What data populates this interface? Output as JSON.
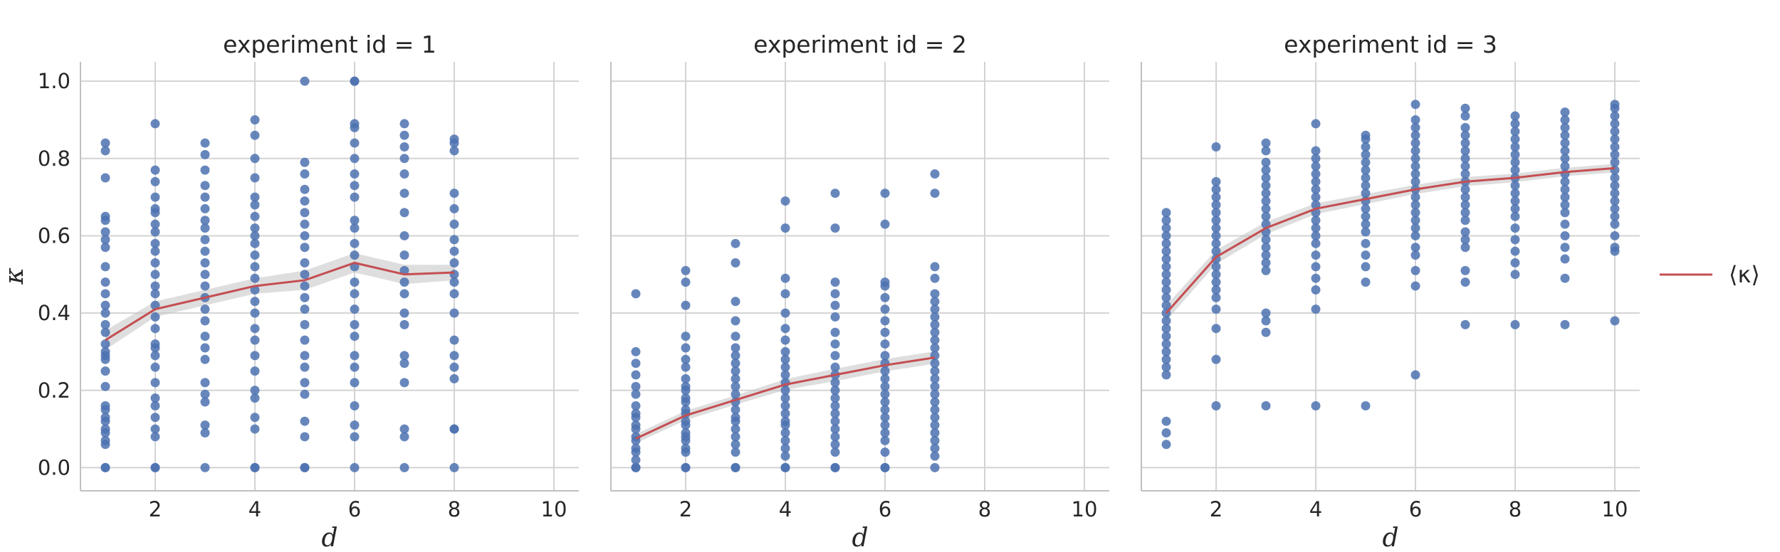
{
  "chart_data": {
    "type": "scatter",
    "ylabel": "κ",
    "xlabel": "d",
    "xlim": [
      0.5,
      10.5
    ],
    "ylim": [
      -0.06,
      1.05
    ],
    "xticks": [
      2,
      4,
      6,
      8,
      10
    ],
    "yticks": [
      0.0,
      0.2,
      0.4,
      0.6,
      0.8,
      1.0
    ],
    "ytick_labels": [
      "0.0",
      "0.2",
      "0.4",
      "0.6",
      "0.8",
      "1.0"
    ],
    "grid": true,
    "legend_position": "right",
    "legend": [
      {
        "label": "⟨κ⟩",
        "color": "#c44e52"
      }
    ],
    "colors": {
      "points": "#4c72b0",
      "mean_line": "#c44e52",
      "ci_band": "#c8c8c8",
      "grid": "#d3d3d3",
      "spine": "#c0c0c0"
    },
    "panels": [
      {
        "title": "experiment id = 1",
        "mean_line": {
          "x": [
            1,
            2,
            3,
            4,
            5,
            6,
            7,
            8
          ],
          "y": [
            0.33,
            0.41,
            0.44,
            0.47,
            0.485,
            0.53,
            0.5,
            0.505
          ],
          "ci_half_width": [
            0.025,
            0.02,
            0.02,
            0.02,
            0.025,
            0.025,
            0.025,
            0.02
          ]
        },
        "points": [
          {
            "x": 1,
            "y": [
              0.0,
              0.0,
              0.06,
              0.07,
              0.09,
              0.1,
              0.12,
              0.13,
              0.15,
              0.16,
              0.21,
              0.25,
              0.28,
              0.29,
              0.3,
              0.32,
              0.35,
              0.37,
              0.4,
              0.42,
              0.45,
              0.48,
              0.52,
              0.57,
              0.59,
              0.61,
              0.64,
              0.65,
              0.75,
              0.82,
              0.84
            ]
          },
          {
            "x": 2,
            "y": [
              0.0,
              0.0,
              0.08,
              0.1,
              0.13,
              0.16,
              0.18,
              0.22,
              0.26,
              0.29,
              0.31,
              0.32,
              0.36,
              0.39,
              0.42,
              0.45,
              0.47,
              0.5,
              0.53,
              0.56,
              0.58,
              0.61,
              0.63,
              0.66,
              0.67,
              0.7,
              0.74,
              0.77,
              0.89
            ]
          },
          {
            "x": 3,
            "y": [
              0.0,
              0.09,
              0.11,
              0.17,
              0.19,
              0.22,
              0.28,
              0.31,
              0.34,
              0.38,
              0.41,
              0.44,
              0.47,
              0.5,
              0.53,
              0.56,
              0.59,
              0.62,
              0.64,
              0.67,
              0.7,
              0.73,
              0.77,
              0.81,
              0.84
            ]
          },
          {
            "x": 4,
            "y": [
              0.0,
              0.0,
              0.1,
              0.13,
              0.18,
              0.2,
              0.25,
              0.29,
              0.33,
              0.36,
              0.4,
              0.43,
              0.46,
              0.49,
              0.52,
              0.55,
              0.58,
              0.6,
              0.62,
              0.65,
              0.68,
              0.7,
              0.75,
              0.8,
              0.86,
              0.9
            ]
          },
          {
            "x": 5,
            "y": [
              0.0,
              0.0,
              0.08,
              0.12,
              0.19,
              0.22,
              0.26,
              0.29,
              0.33,
              0.37,
              0.41,
              0.44,
              0.47,
              0.5,
              0.53,
              0.57,
              0.6,
              0.63,
              0.66,
              0.69,
              0.72,
              0.76,
              0.79,
              1.0
            ]
          },
          {
            "x": 6,
            "y": [
              0.0,
              0.08,
              0.11,
              0.16,
              0.22,
              0.26,
              0.29,
              0.34,
              0.37,
              0.41,
              0.45,
              0.48,
              0.52,
              0.55,
              0.58,
              0.62,
              0.64,
              0.7,
              0.73,
              0.76,
              0.8,
              0.84,
              0.88,
              0.89,
              1.0,
              1.0
            ]
          },
          {
            "x": 7,
            "y": [
              0.0,
              0.08,
              0.1,
              0.22,
              0.27,
              0.29,
              0.37,
              0.4,
              0.45,
              0.48,
              0.51,
              0.55,
              0.6,
              0.66,
              0.71,
              0.76,
              0.8,
              0.83,
              0.86,
              0.89
            ]
          },
          {
            "x": 8,
            "y": [
              0.0,
              0.1,
              0.1,
              0.23,
              0.26,
              0.29,
              0.33,
              0.4,
              0.45,
              0.48,
              0.5,
              0.53,
              0.56,
              0.59,
              0.63,
              0.67,
              0.71,
              0.82,
              0.84,
              0.85
            ]
          }
        ]
      },
      {
        "title": "experiment id = 2",
        "mean_line": {
          "x": [
            1,
            2,
            3,
            4,
            5,
            6,
            7
          ],
          "y": [
            0.075,
            0.135,
            0.175,
            0.215,
            0.24,
            0.265,
            0.285
          ],
          "ci_half_width": [
            0.012,
            0.012,
            0.012,
            0.014,
            0.016,
            0.016,
            0.016
          ]
        },
        "points": [
          {
            "x": 1,
            "y": [
              0.0,
              0.0,
              0.02,
              0.04,
              0.05,
              0.07,
              0.08,
              0.1,
              0.11,
              0.13,
              0.14,
              0.16,
              0.19,
              0.21,
              0.24,
              0.27,
              0.3,
              0.45
            ]
          },
          {
            "x": 2,
            "y": [
              0.0,
              0.0,
              0.04,
              0.05,
              0.07,
              0.08,
              0.09,
              0.11,
              0.12,
              0.14,
              0.15,
              0.17,
              0.18,
              0.2,
              0.21,
              0.23,
              0.26,
              0.28,
              0.31,
              0.34,
              0.42,
              0.48,
              0.51
            ]
          },
          {
            "x": 3,
            "y": [
              0.0,
              0.0,
              0.04,
              0.06,
              0.08,
              0.1,
              0.12,
              0.13,
              0.15,
              0.17,
              0.19,
              0.21,
              0.23,
              0.25,
              0.27,
              0.29,
              0.31,
              0.34,
              0.38,
              0.43,
              0.53,
              0.58
            ]
          },
          {
            "x": 4,
            "y": [
              0.0,
              0.0,
              0.03,
              0.05,
              0.07,
              0.09,
              0.11,
              0.12,
              0.14,
              0.16,
              0.18,
              0.2,
              0.22,
              0.24,
              0.26,
              0.28,
              0.3,
              0.33,
              0.36,
              0.4,
              0.45,
              0.49,
              0.62,
              0.69
            ]
          },
          {
            "x": 5,
            "y": [
              0.0,
              0.0,
              0.04,
              0.06,
              0.08,
              0.1,
              0.12,
              0.14,
              0.16,
              0.18,
              0.2,
              0.22,
              0.24,
              0.26,
              0.29,
              0.32,
              0.35,
              0.39,
              0.42,
              0.45,
              0.48,
              0.62,
              0.71
            ]
          },
          {
            "x": 6,
            "y": [
              0.0,
              0.0,
              0.04,
              0.07,
              0.09,
              0.11,
              0.13,
              0.15,
              0.17,
              0.19,
              0.21,
              0.23,
              0.25,
              0.27,
              0.29,
              0.32,
              0.35,
              0.38,
              0.41,
              0.44,
              0.47,
              0.48,
              0.63,
              0.71
            ]
          },
          {
            "x": 7,
            "y": [
              0.0,
              0.03,
              0.05,
              0.07,
              0.09,
              0.11,
              0.13,
              0.15,
              0.17,
              0.19,
              0.21,
              0.23,
              0.25,
              0.27,
              0.29,
              0.31,
              0.33,
              0.35,
              0.37,
              0.39,
              0.41,
              0.43,
              0.45,
              0.49,
              0.52,
              0.71,
              0.76
            ]
          }
        ]
      },
      {
        "title": "experiment id = 3",
        "mean_line": {
          "x": [
            1,
            2,
            3,
            4,
            5,
            6,
            7,
            8,
            9,
            10
          ],
          "y": [
            0.4,
            0.545,
            0.62,
            0.67,
            0.695,
            0.72,
            0.74,
            0.75,
            0.765,
            0.775
          ],
          "ci_half_width": [
            0.02,
            0.018,
            0.016,
            0.014,
            0.013,
            0.012,
            0.012,
            0.011,
            0.011,
            0.011
          ]
        },
        "points": [
          {
            "x": 1,
            "y": [
              0.06,
              0.09,
              0.12,
              0.24,
              0.26,
              0.28,
              0.3,
              0.32,
              0.34,
              0.36,
              0.38,
              0.4,
              0.42,
              0.44,
              0.46,
              0.48,
              0.5,
              0.52,
              0.54,
              0.56,
              0.58,
              0.6,
              0.62,
              0.64,
              0.66
            ]
          },
          {
            "x": 2,
            "y": [
              0.16,
              0.28,
              0.36,
              0.41,
              0.44,
              0.46,
              0.48,
              0.5,
              0.52,
              0.54,
              0.56,
              0.58,
              0.6,
              0.62,
              0.64,
              0.66,
              0.68,
              0.7,
              0.72,
              0.74,
              0.83
            ]
          },
          {
            "x": 3,
            "y": [
              0.16,
              0.35,
              0.38,
              0.4,
              0.51,
              0.53,
              0.55,
              0.57,
              0.59,
              0.61,
              0.63,
              0.65,
              0.67,
              0.69,
              0.71,
              0.73,
              0.75,
              0.77,
              0.79,
              0.82,
              0.84
            ]
          },
          {
            "x": 4,
            "y": [
              0.16,
              0.41,
              0.46,
              0.49,
              0.52,
              0.55,
              0.58,
              0.6,
              0.62,
              0.64,
              0.66,
              0.68,
              0.7,
              0.72,
              0.74,
              0.76,
              0.78,
              0.8,
              0.82,
              0.89
            ]
          },
          {
            "x": 5,
            "y": [
              0.16,
              0.48,
              0.52,
              0.55,
              0.58,
              0.61,
              0.63,
              0.65,
              0.67,
              0.69,
              0.71,
              0.73,
              0.75,
              0.77,
              0.79,
              0.81,
              0.83,
              0.85,
              0.86
            ]
          },
          {
            "x": 6,
            "y": [
              0.24,
              0.47,
              0.51,
              0.55,
              0.57,
              0.6,
              0.62,
              0.64,
              0.66,
              0.68,
              0.7,
              0.72,
              0.74,
              0.76,
              0.78,
              0.8,
              0.82,
              0.84,
              0.86,
              0.88,
              0.9,
              0.94
            ]
          },
          {
            "x": 7,
            "y": [
              0.37,
              0.48,
              0.51,
              0.57,
              0.59,
              0.61,
              0.64,
              0.66,
              0.68,
              0.7,
              0.72,
              0.74,
              0.76,
              0.78,
              0.8,
              0.82,
              0.84,
              0.86,
              0.88,
              0.91,
              0.93
            ]
          },
          {
            "x": 8,
            "y": [
              0.37,
              0.5,
              0.53,
              0.56,
              0.59,
              0.62,
              0.65,
              0.67,
              0.69,
              0.71,
              0.73,
              0.75,
              0.77,
              0.79,
              0.81,
              0.83,
              0.85,
              0.87,
              0.89,
              0.91
            ]
          },
          {
            "x": 9,
            "y": [
              0.37,
              0.49,
              0.54,
              0.57,
              0.6,
              0.63,
              0.66,
              0.68,
              0.7,
              0.72,
              0.74,
              0.76,
              0.78,
              0.8,
              0.82,
              0.84,
              0.86,
              0.88,
              0.9,
              0.92
            ]
          },
          {
            "x": 10,
            "y": [
              0.38,
              0.56,
              0.57,
              0.6,
              0.63,
              0.65,
              0.67,
              0.69,
              0.71,
              0.73,
              0.75,
              0.77,
              0.79,
              0.81,
              0.83,
              0.85,
              0.87,
              0.89,
              0.91,
              0.93,
              0.94
            ]
          }
        ]
      }
    ]
  }
}
